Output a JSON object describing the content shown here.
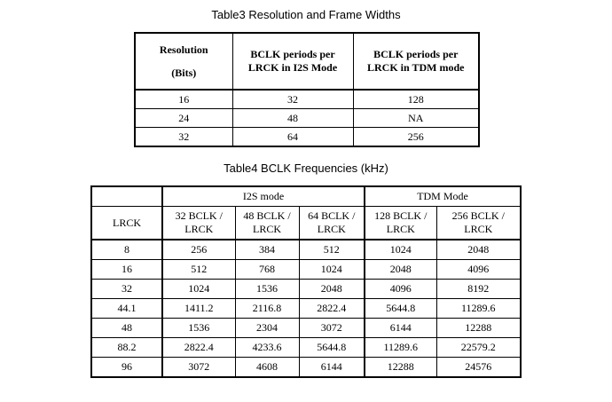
{
  "table3": {
    "caption": "Table3 Resolution and Frame Widths",
    "headers": {
      "resolution_line1": "Resolution",
      "resolution_line2": "(Bits)",
      "i2s_line1": "BCLK periods per",
      "i2s_line2": "LRCK in I2S Mode",
      "tdm_line1": "BCLK periods per",
      "tdm_line2": "LRCK in TDM mode"
    },
    "rows": [
      [
        "16",
        "32",
        "128"
      ],
      [
        "24",
        "48",
        "NA"
      ],
      [
        "32",
        "64",
        "256"
      ]
    ]
  },
  "table4": {
    "caption": "Table4 BCLK Frequencies (kHz)",
    "group_headers": {
      "i2s": "I2S mode",
      "tdm": "TDM Mode"
    },
    "sub_headers": {
      "lrck": "LRCK",
      "c32_l1": "32 BCLK /",
      "c32_l2": "LRCK",
      "c48_l1": "48 BCLK /",
      "c48_l2": "LRCK",
      "c64_l1": "64 BCLK /",
      "c64_l2": "LRCK",
      "c128_l1": "128 BCLK /",
      "c128_l2": "LRCK",
      "c256_l1": "256 BCLK /",
      "c256_l2": "LRCK"
    },
    "rows": [
      [
        "8",
        "256",
        "384",
        "512",
        "1024",
        "2048"
      ],
      [
        "16",
        "512",
        "768",
        "1024",
        "2048",
        "4096"
      ],
      [
        "32",
        "1024",
        "1536",
        "2048",
        "4096",
        "8192"
      ],
      [
        "44.1",
        "1411.2",
        "2116.8",
        "2822.4",
        "5644.8",
        "11289.6"
      ],
      [
        "48",
        "1536",
        "2304",
        "3072",
        "6144",
        "12288"
      ],
      [
        "88.2",
        "2822.4",
        "4233.6",
        "5644.8",
        "11289.6",
        "22579.2"
      ],
      [
        "96",
        "3072",
        "4608",
        "6144",
        "12288",
        "24576"
      ]
    ]
  }
}
